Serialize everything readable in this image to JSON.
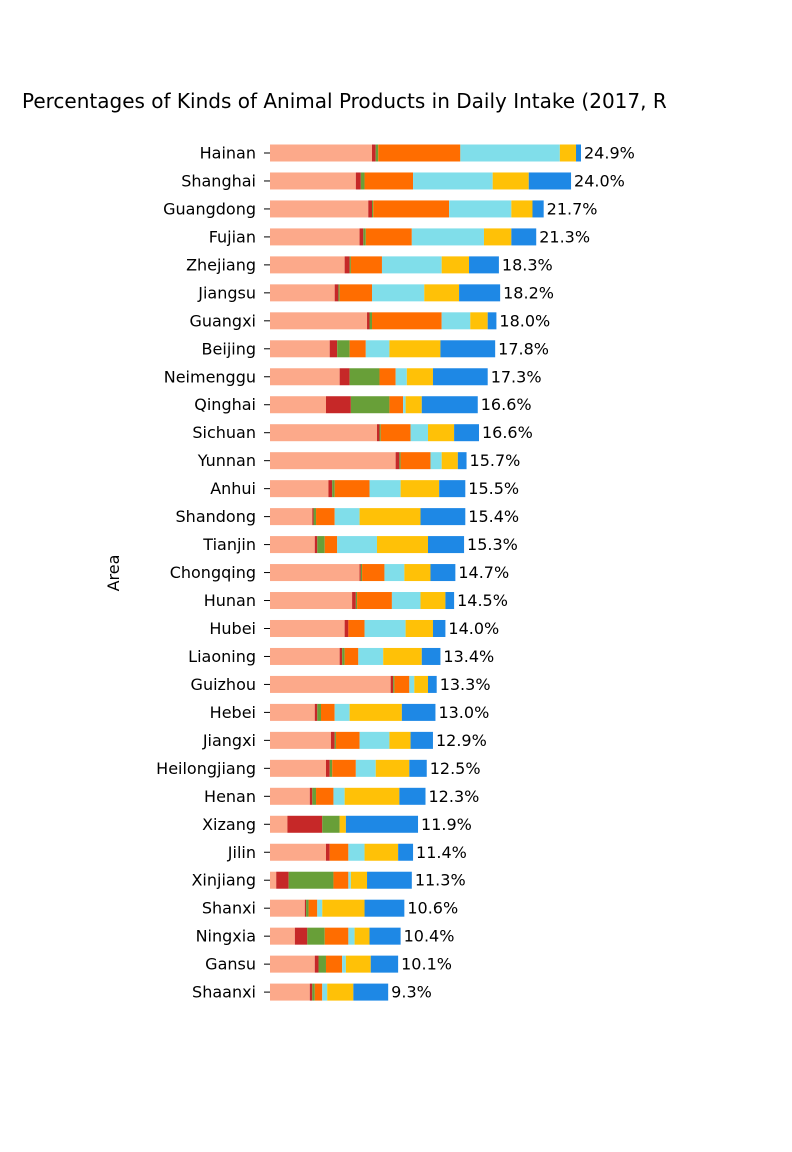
{
  "chart_data": {
    "type": "bar",
    "orientation": "horizontal",
    "stacked": true,
    "title": "Percentages of Kinds of Animal Products in Daily Intake (2017, R",
    "ylabel": "Area",
    "xlim": [
      0,
      25
    ],
    "grid": false,
    "legend": "none",
    "categories": [
      "Hainan",
      "Shanghai",
      "Guangdong",
      "Fujian",
      "Zhejiang",
      "Jiangsu",
      "Guangxi",
      "Beijing",
      "Neimenggu",
      "Qinghai",
      "Sichuan",
      "Yunnan",
      "Anhui",
      "Shandong",
      "Tianjin",
      "Chongqing",
      "Hunan",
      "Hubei",
      "Liaoning",
      "Guizhou",
      "Hebei",
      "Jiangxi",
      "Heilongjiang",
      "Henan",
      "Xizang",
      "Jilin",
      "Xinjiang",
      "Shanxi",
      "Ningxia",
      "Gansu",
      "Shaanxi"
    ],
    "totals": [
      "24.9%",
      "24.0%",
      "21.7%",
      "21.3%",
      "18.3%",
      "18.2%",
      "18.0%",
      "17.8%",
      "17.3%",
      "16.6%",
      "16.6%",
      "15.7%",
      "15.5%",
      "15.4%",
      "15.3%",
      "14.7%",
      "14.5%",
      "14.0%",
      "13.4%",
      "13.3%",
      "13.0%",
      "12.9%",
      "12.5%",
      "12.3%",
      "11.9%",
      "11.4%",
      "11.3%",
      "10.6%",
      "10.4%",
      "10.1%",
      "9.3%"
    ],
    "series": [
      {
        "color": "#FCA98A",
        "values": [
          8.2,
          6.9,
          7.9,
          7.2,
          6.0,
          5.2,
          7.8,
          4.8,
          5.6,
          4.5,
          8.6,
          10.1,
          4.7,
          3.4,
          3.6,
          7.2,
          6.6,
          6.0,
          5.6,
          9.7,
          3.6,
          4.9,
          4.5,
          3.2,
          1.4,
          4.5,
          0.5,
          2.8,
          2.0,
          3.6,
          3.2
        ]
      },
      {
        "color": "#C62828",
        "values": [
          0.3,
          0.4,
          0.3,
          0.3,
          0.4,
          0.3,
          0.2,
          0.6,
          0.8,
          2.0,
          0.2,
          0.3,
          0.3,
          0.1,
          0.2,
          0.1,
          0.3,
          0.3,
          0.2,
          0.2,
          0.2,
          0.3,
          0.3,
          0.2,
          2.8,
          0.3,
          1.0,
          0.1,
          1.0,
          0.3,
          0.2
        ]
      },
      {
        "color": "#689F38",
        "values": [
          0.2,
          0.3,
          0.1,
          0.2,
          0.1,
          0.1,
          0.2,
          1.0,
          2.4,
          3.1,
          0.1,
          0.1,
          0.2,
          0.2,
          0.6,
          0.1,
          0.1,
          0.0,
          0.2,
          0.1,
          0.3,
          0.1,
          0.2,
          0.3,
          1.4,
          0.0,
          3.6,
          0.2,
          1.4,
          0.6,
          0.2
        ]
      },
      {
        "color": "#FF6D00",
        "values": [
          6.6,
          3.9,
          6.1,
          3.7,
          2.5,
          2.6,
          5.6,
          1.3,
          1.3,
          1.1,
          2.4,
          2.4,
          2.8,
          1.5,
          1.0,
          1.8,
          2.8,
          1.3,
          1.1,
          1.2,
          1.1,
          1.9,
          1.9,
          1.4,
          0.0,
          1.5,
          1.2,
          0.7,
          1.9,
          1.3,
          0.6
        ]
      },
      {
        "color": "#80DEEA",
        "values": [
          8.0,
          6.4,
          5.0,
          5.8,
          4.8,
          4.2,
          2.3,
          1.9,
          0.9,
          0.2,
          1.4,
          0.9,
          2.5,
          2.0,
          3.2,
          1.6,
          2.3,
          3.3,
          2.0,
          0.4,
          1.2,
          2.4,
          1.6,
          0.9,
          0.0,
          1.3,
          0.2,
          0.4,
          0.5,
          0.3,
          0.4
        ]
      },
      {
        "color": "#FFC107",
        "values": [
          1.3,
          2.9,
          1.7,
          2.2,
          2.2,
          2.8,
          1.4,
          4.1,
          2.1,
          1.3,
          2.1,
          1.3,
          3.1,
          4.9,
          4.1,
          2.1,
          2.0,
          2.2,
          3.1,
          1.1,
          4.2,
          1.7,
          2.7,
          4.4,
          0.5,
          2.7,
          1.3,
          3.4,
          1.2,
          2.0,
          2.1
        ]
      },
      {
        "color": "#1E88E5",
        "values": [
          0.4,
          3.4,
          0.9,
          2.0,
          2.4,
          3.3,
          0.7,
          4.4,
          4.4,
          4.5,
          2.0,
          0.7,
          2.1,
          3.6,
          2.9,
          2.0,
          0.7,
          1.0,
          1.5,
          0.7,
          2.7,
          1.8,
          1.4,
          2.1,
          5.8,
          1.2,
          3.6,
          3.2,
          2.5,
          2.2,
          2.8
        ]
      }
    ]
  }
}
